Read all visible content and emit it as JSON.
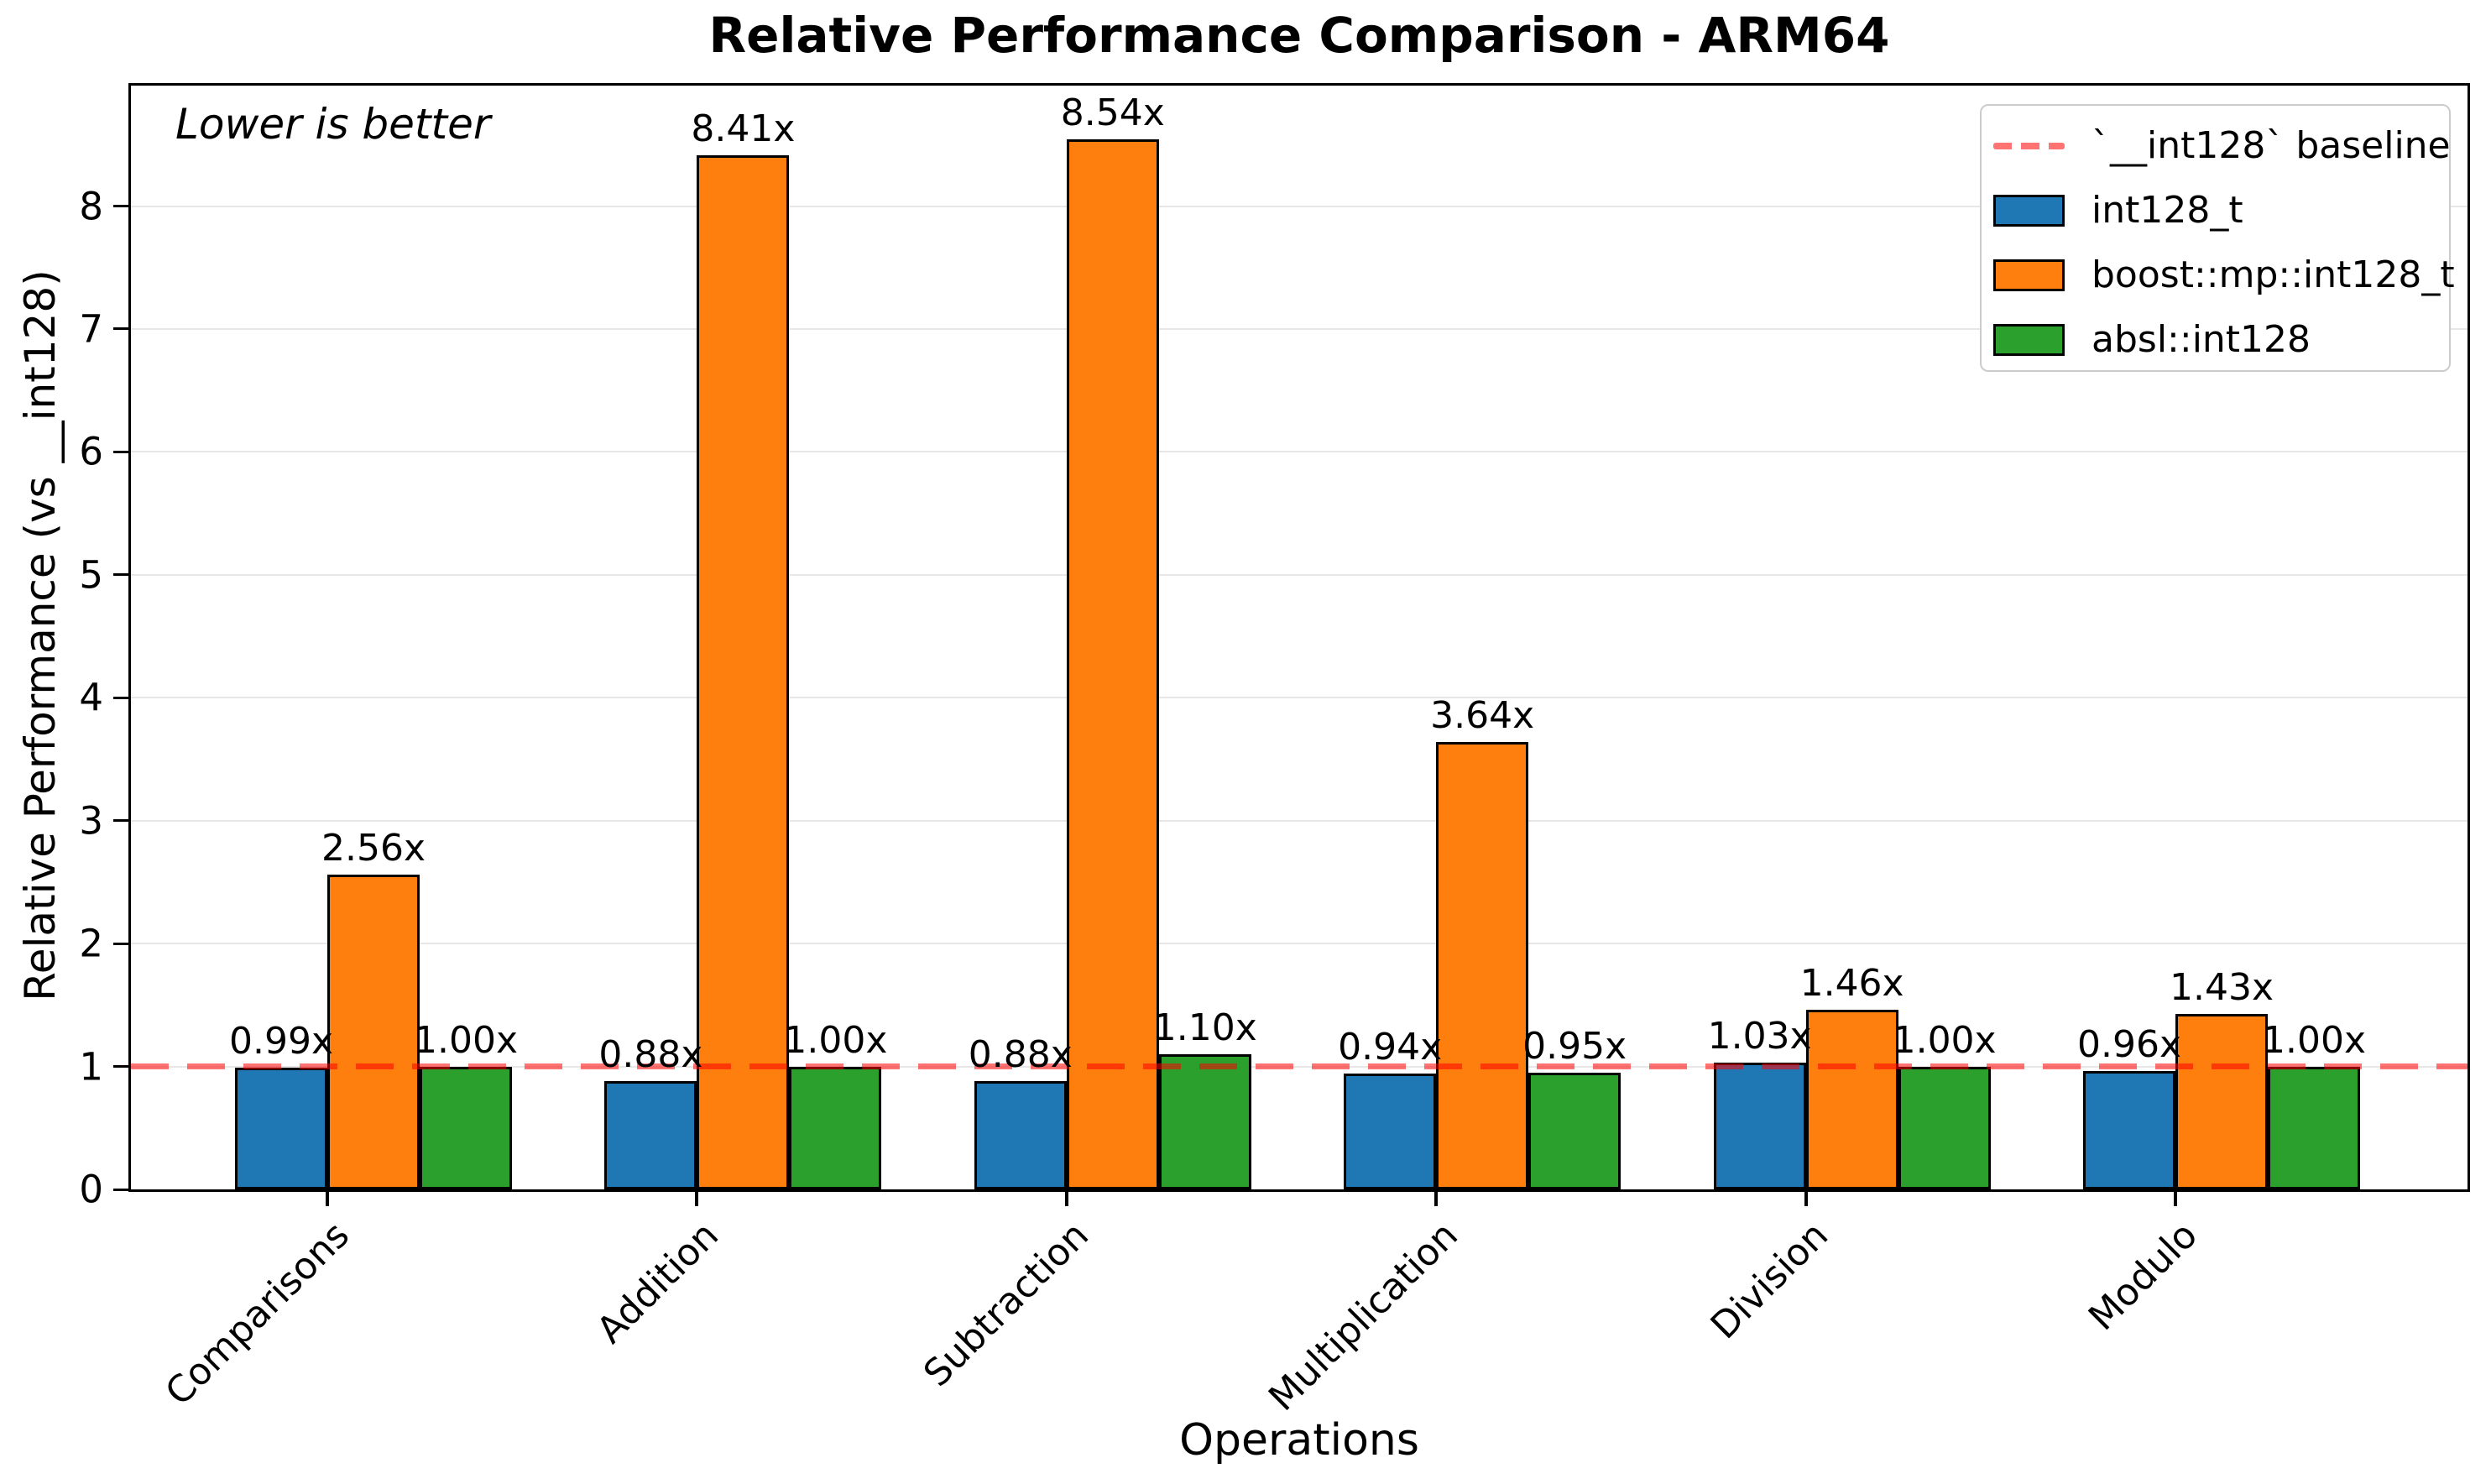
{
  "chart_data": {
    "type": "bar",
    "title": "Relative Performance Comparison - ARM64",
    "annotation": "Lower is better",
    "xlabel": "Operations",
    "ylabel": "Relative Performance (vs __int128)",
    "categories": [
      "Comparisons",
      "Addition",
      "Subtraction",
      "Multiplication",
      "Division",
      "Modulo"
    ],
    "series": [
      {
        "name": "int128_t",
        "color": "#1f77b4",
        "values": [
          0.99,
          0.88,
          0.88,
          0.94,
          1.03,
          0.96
        ]
      },
      {
        "name": "boost::mp::int128_t",
        "color": "#ff7f0e",
        "values": [
          2.56,
          8.41,
          8.54,
          3.64,
          1.46,
          1.43
        ]
      },
      {
        "name": "absl::int128",
        "color": "#2ca02c",
        "values": [
          1.0,
          1.0,
          1.1,
          0.95,
          1.0,
          1.0
        ]
      }
    ],
    "value_label_suffix": "x",
    "baseline": {
      "value": 1.0,
      "label": "`__int128` baseline",
      "color": "rgba(255,0,0,0.55)"
    },
    "yticks": [
      0,
      1,
      2,
      3,
      4,
      5,
      6,
      7,
      8
    ],
    "ylim": [
      0,
      8.98
    ],
    "grid": true,
    "legend_position": "upper right",
    "note": "Lower is better"
  }
}
